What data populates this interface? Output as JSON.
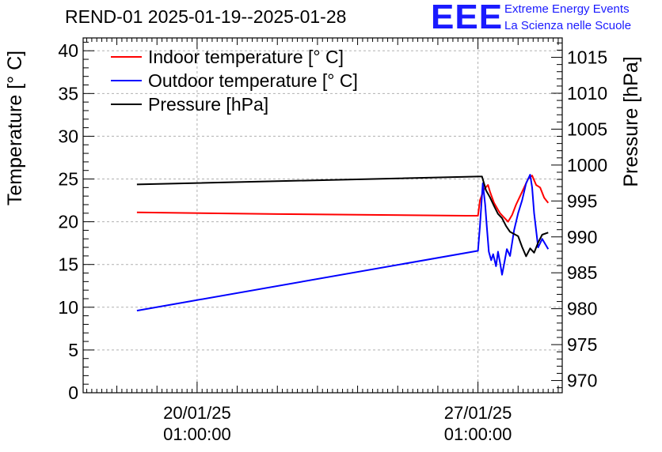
{
  "header": {
    "title": "REND-01 2025-01-19--2025-01-28",
    "logo_text": "EEE",
    "logo_line1": "Extreme Energy Events",
    "logo_line2": "La Scienza nelle Scuole"
  },
  "chart_data": {
    "type": "line",
    "title": "REND-01 2025-01-19--2025-01-28",
    "xlabel": "",
    "ylabel": "Temperature [° C]",
    "y2label": "Pressure [hPa]",
    "x_tick_labels": [
      {
        "date": "20/01/25",
        "time": "01:00:00",
        "x": 1
      },
      {
        "date": "27/01/25",
        "time": "01:00:00",
        "x": 8
      }
    ],
    "xlim": [
      -1.84,
      10.1
    ],
    "ylim": [
      0,
      41.5
    ],
    "y2lim": [
      968.3,
      1017.7
    ],
    "y_ticks": [
      0,
      5,
      10,
      15,
      20,
      25,
      30,
      35,
      40
    ],
    "y2_ticks": [
      970,
      975,
      980,
      985,
      990,
      995,
      1000,
      1005,
      1010,
      1015
    ],
    "grid": true,
    "legend_position": "top-left",
    "legend": [
      {
        "label": "Indoor temperature [° C]",
        "color": "#ff0000"
      },
      {
        "label": "Outdoor temperature [° C]",
        "color": "#0000ff"
      },
      {
        "label": "Pressure [hPa]",
        "color": "#000000"
      }
    ],
    "series": [
      {
        "name": "Indoor temperature [° C]",
        "axis": "left",
        "color": "#ff0000",
        "x": [
          -0.5,
          3.0,
          7.7,
          8.0,
          8.05,
          8.15,
          8.25,
          8.3,
          8.4,
          8.5,
          8.55,
          8.65,
          8.75,
          8.85,
          8.95,
          9.05,
          9.15,
          9.25,
          9.35,
          9.45,
          9.55,
          9.65,
          9.75
        ],
        "values": [
          21.1,
          20.9,
          20.7,
          20.7,
          22.5,
          23.8,
          24.3,
          23.5,
          22.2,
          21.4,
          21.0,
          20.5,
          20.0,
          20.8,
          22.0,
          23.0,
          24.0,
          25.0,
          25.4,
          24.3,
          24.0,
          22.8,
          22.2
        ]
      },
      {
        "name": "Outdoor temperature [° C]",
        "axis": "left",
        "color": "#0000ff",
        "x": [
          -0.5,
          8.0,
          8.05,
          8.12,
          8.18,
          8.22,
          8.27,
          8.33,
          8.38,
          8.45,
          8.5,
          8.55,
          8.6,
          8.65,
          8.72,
          8.8,
          8.9,
          9.0,
          9.1,
          9.2,
          9.3,
          9.35,
          9.4,
          9.5,
          9.6,
          9.75
        ],
        "values": [
          9.6,
          16.6,
          19.5,
          24.5,
          22.0,
          19.5,
          16.5,
          15.5,
          16.2,
          14.8,
          16.5,
          15.2,
          13.8,
          15.0,
          16.8,
          16.0,
          19.0,
          21.0,
          22.5,
          24.5,
          25.5,
          24.0,
          21.0,
          17.0,
          18.0,
          16.8
        ]
      },
      {
        "name": "Pressure [hPa]",
        "axis": "right",
        "color": "#000000",
        "x": [
          -0.5,
          8.0,
          8.1,
          8.2,
          8.3,
          8.4,
          8.5,
          8.6,
          8.7,
          8.8,
          8.9,
          9.0,
          9.1,
          9.2,
          9.3,
          9.4,
          9.5,
          9.6,
          9.75
        ],
        "values": [
          997.3,
          998.4,
          998.4,
          996.5,
          995.5,
          994.3,
          993.2,
          992.6,
          991.5,
          990.7,
          990.4,
          990.1,
          988.6,
          987.3,
          988.4,
          987.8,
          989.2,
          990.3,
          990.6
        ]
      }
    ]
  }
}
